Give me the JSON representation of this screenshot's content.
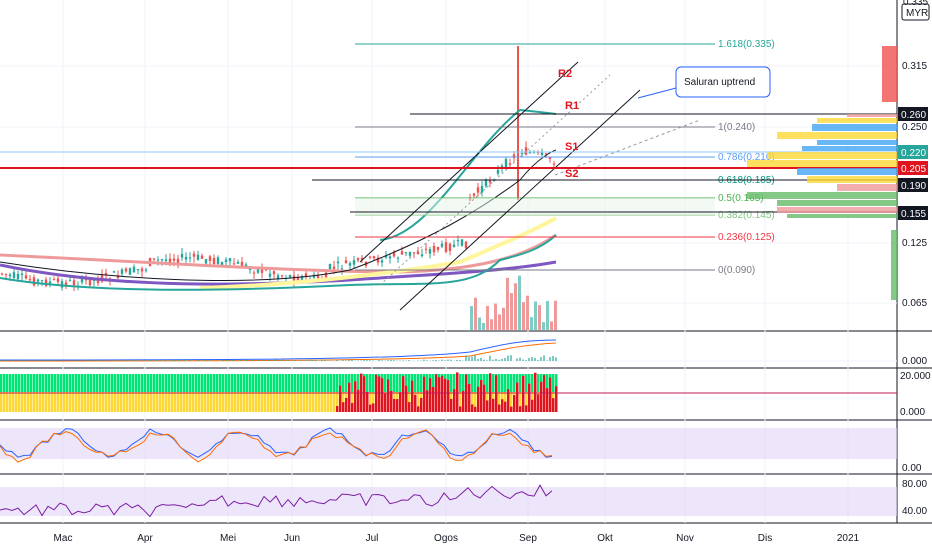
{
  "currency_label": "MYR",
  "price_axis": {
    "top_label": "0.335",
    "ticks": [
      "0.315",
      "0.250",
      "0.125",
      "0.065",
      "0.000"
    ]
  },
  "price_badges": [
    {
      "value": "0.260",
      "bg": "#131722",
      "fg": "#ffffff"
    },
    {
      "value": "0.220",
      "bg": "#26a69a",
      "fg": "#ffffff"
    },
    {
      "value": "0.205",
      "bg": "#e0141e",
      "fg": "#ffffff"
    },
    {
      "value": "0.190",
      "bg": "#131722",
      "fg": "#ffffff"
    },
    {
      "value": "0.155",
      "bg": "#131722",
      "fg": "#ffffff"
    }
  ],
  "pane_axes": {
    "indicator_ticks": [
      "20.000",
      "0.000"
    ],
    "stoch_tick": "0.00",
    "rsi_ticks": [
      "80.00",
      "40.00"
    ]
  },
  "x_axis_labels": [
    "Mac",
    "Apr",
    "Mei",
    "Jun",
    "Jul",
    "Ogos",
    "Sep",
    "Okt",
    "Nov",
    "Dis",
    "2021"
  ],
  "fib_levels": [
    {
      "label": "1.618(0.335)",
      "color": "#26a69a"
    },
    {
      "label": "1(0.240)",
      "color": "#787b86"
    },
    {
      "label": "0.786(0.210)",
      "color": "#5b9cf6"
    },
    {
      "label": "0.618(0.185)",
      "color": "#089981"
    },
    {
      "label": "0.5(0.165)",
      "color": "#4caf50"
    },
    {
      "label": "0.382(0.145)",
      "color": "#81c784"
    },
    {
      "label": "0.236(0.125)",
      "color": "#f23645"
    },
    {
      "label": "0(0.090)",
      "color": "#787b86"
    }
  ],
  "sr_labels": [
    "R2",
    "R1",
    "S1",
    "S2"
  ],
  "annotation": "Saluran uptrend",
  "chart_data": {
    "type": "line",
    "title": "",
    "xlabel": "",
    "ylabel": "",
    "x": [
      "Mac",
      "Apr",
      "Mei",
      "Jun",
      "Jul",
      "Ogos",
      "Sep",
      "Okt",
      "Nov",
      "Dis",
      "2021"
    ],
    "ylim": [
      0.0,
      0.335
    ],
    "series": [
      {
        "values": [
          0.09,
          0.085,
          0.07,
          0.08,
          0.09,
          0.11,
          0.24,
          0.21,
          null,
          null,
          null
        ]
      }
    ],
    "horizontal_levels": [
      0.26,
      0.22,
      0.205,
      0.19,
      0.155
    ],
    "grid": true,
    "legend": "none"
  }
}
